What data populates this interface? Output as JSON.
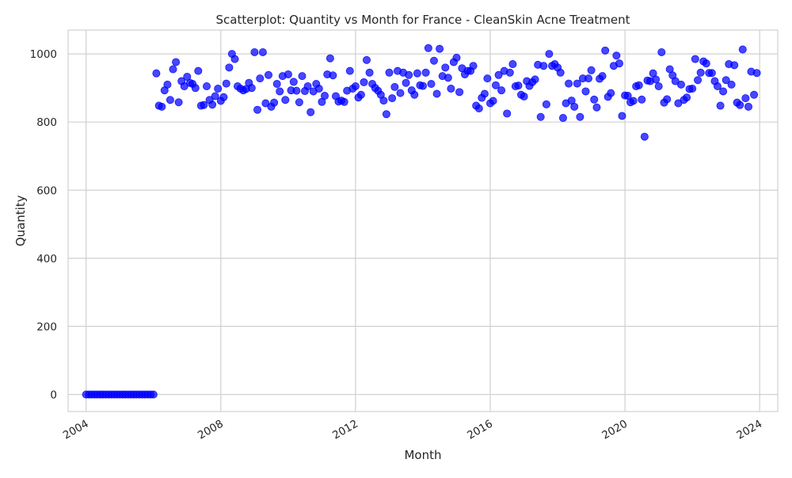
{
  "chart_data": {
    "type": "scatter",
    "title": "Scatterplot: Quantity vs Month for France - CleanSkin Acne Treatment",
    "xlabel": "Month",
    "ylabel": "Quantity",
    "xlim": [
      "2003-06-20",
      "2024-07-15"
    ],
    "ylim": [
      -50,
      1070
    ],
    "x_ticks": [
      "2004",
      "2008",
      "2012",
      "2016",
      "2020",
      "2024"
    ],
    "y_ticks": [
      "0",
      "200",
      "400",
      "600",
      "800",
      "1000"
    ],
    "grid": true,
    "point_color": "#0000ff",
    "series": [
      {
        "x": [
          "2004-01",
          "2004-02",
          "2004-03",
          "2004-04",
          "2004-05",
          "2004-06",
          "2004-07",
          "2004-08",
          "2004-09",
          "2004-10",
          "2004-11",
          "2004-12",
          "2005-01",
          "2005-02",
          "2005-03",
          "2005-04",
          "2005-05",
          "2005-06",
          "2005-07",
          "2005-08",
          "2005-09",
          "2005-10",
          "2005-11",
          "2005-12",
          "2006-01",
          "2006-02",
          "2006-03",
          "2006-04",
          "2006-05",
          "2006-06",
          "2006-07",
          "2006-08",
          "2006-09",
          "2006-10",
          "2006-11",
          "2006-12",
          "2007-01",
          "2007-02",
          "2007-03",
          "2007-04",
          "2007-05",
          "2007-06",
          "2007-07",
          "2007-08",
          "2007-09",
          "2007-10",
          "2007-11",
          "2007-12",
          "2008-01",
          "2008-02",
          "2008-03",
          "2008-04",
          "2008-05",
          "2008-06",
          "2008-07",
          "2008-08",
          "2008-09",
          "2008-10",
          "2008-11",
          "2008-12",
          "2009-01",
          "2009-02",
          "2009-03",
          "2009-04",
          "2009-05",
          "2009-06",
          "2009-07",
          "2009-08",
          "2009-09",
          "2009-10",
          "2009-11",
          "2009-12",
          "2010-01",
          "2010-02",
          "2010-03",
          "2010-04",
          "2010-05",
          "2010-06",
          "2010-07",
          "2010-08",
          "2010-09",
          "2010-10",
          "2010-11",
          "2010-12",
          "2011-01",
          "2011-02",
          "2011-03",
          "2011-04",
          "2011-05",
          "2011-06",
          "2011-07",
          "2011-08",
          "2011-09",
          "2011-10",
          "2011-11",
          "2011-12",
          "2012-01",
          "2012-02",
          "2012-03",
          "2012-04",
          "2012-05",
          "2012-06",
          "2012-07",
          "2012-08",
          "2012-09",
          "2012-10",
          "2012-11",
          "2012-12",
          "2013-01",
          "2013-02",
          "2013-03",
          "2013-04",
          "2013-05",
          "2013-06",
          "2013-07",
          "2013-08",
          "2013-09",
          "2013-10",
          "2013-11",
          "2013-12",
          "2014-01",
          "2014-02",
          "2014-03",
          "2014-04",
          "2014-05",
          "2014-06",
          "2014-07",
          "2014-08",
          "2014-09",
          "2014-10",
          "2014-11",
          "2014-12",
          "2015-01",
          "2015-02",
          "2015-03",
          "2015-04",
          "2015-05",
          "2015-06",
          "2015-07",
          "2015-08",
          "2015-09",
          "2015-10",
          "2015-11",
          "2015-12",
          "2016-01",
          "2016-02",
          "2016-03",
          "2016-04",
          "2016-05",
          "2016-06",
          "2016-07",
          "2016-08",
          "2016-09",
          "2016-10",
          "2016-11",
          "2016-12",
          "2017-01",
          "2017-02",
          "2017-03",
          "2017-04",
          "2017-05",
          "2017-06",
          "2017-07",
          "2017-08",
          "2017-09",
          "2017-10",
          "2017-11",
          "2017-12",
          "2018-01",
          "2018-02",
          "2018-03",
          "2018-04",
          "2018-05",
          "2018-06",
          "2018-07",
          "2018-08",
          "2018-09",
          "2018-10",
          "2018-11",
          "2018-12",
          "2019-01",
          "2019-02",
          "2019-03",
          "2019-04",
          "2019-05",
          "2019-06",
          "2019-07",
          "2019-08",
          "2019-09",
          "2019-10",
          "2019-11",
          "2019-12",
          "2020-01",
          "2020-02",
          "2020-03",
          "2020-04",
          "2020-05",
          "2020-06",
          "2020-07",
          "2020-08",
          "2020-09",
          "2020-10",
          "2020-11",
          "2020-12",
          "2021-01",
          "2021-02",
          "2021-03",
          "2021-04",
          "2021-05",
          "2021-06",
          "2021-07",
          "2021-08",
          "2021-09",
          "2021-10",
          "2021-11",
          "2021-12",
          "2022-01",
          "2022-02",
          "2022-03",
          "2022-04",
          "2022-05",
          "2022-06",
          "2022-07",
          "2022-08",
          "2022-09",
          "2022-10",
          "2022-11",
          "2022-12",
          "2023-01",
          "2023-02",
          "2023-03",
          "2023-04",
          "2023-05",
          "2023-06",
          "2023-07",
          "2023-08",
          "2023-09",
          "2023-10",
          "2023-11",
          "2023-12"
        ],
        "y": [
          0,
          0,
          0,
          0,
          0,
          0,
          0,
          0,
          0,
          0,
          0,
          0,
          0,
          0,
          0,
          0,
          0,
          0,
          0,
          0,
          0,
          0,
          0,
          0,
          0,
          943,
          848,
          845,
          893,
          910,
          865,
          955,
          976,
          858,
          920,
          905,
          933,
          915,
          912,
          900,
          950,
          848,
          850,
          905,
          865,
          851,
          876,
          898,
          862,
          873,
          913,
          960,
          1000,
          985,
          905,
          898,
          893,
          897,
          915,
          900,
          1005,
          836,
          928,
          1005,
          855,
          938,
          845,
          857,
          912,
          890,
          935,
          865,
          940,
          893,
          918,
          892,
          858,
          935,
          891,
          905,
          829,
          890,
          912,
          898,
          859,
          877,
          940,
          987,
          937,
          876,
          860,
          863,
          859,
          892,
          950,
          898,
          905,
          872,
          880,
          917,
          982,
          945,
          912,
          900,
          892,
          880,
          863,
          823,
          945,
          870,
          903,
          950,
          885,
          945,
          915,
          938,
          893,
          880,
          943,
          908,
          906,
          945,
          1017,
          912,
          980,
          883,
          1015,
          935,
          960,
          930,
          898,
          976,
          989,
          888,
          958,
          940,
          950,
          950,
          965,
          848,
          840,
          871,
          883,
          928,
          855,
          862,
          908,
          938,
          893,
          950,
          825,
          945,
          970,
          905,
          907,
          880,
          875,
          920,
          906,
          917,
          925,
          968,
          815,
          965,
          852,
          1000,
          965,
          970,
          960,
          945,
          812,
          855,
          913,
          863,
          845,
          913,
          815,
          928,
          890,
          928,
          952,
          866,
          843,
          927,
          935,
          1010,
          874,
          885,
          965,
          995,
          972,
          818,
          878,
          877,
          858,
          862,
          905,
          908,
          866,
          757,
          922,
          920,
          943,
          925,
          905,
          1005,
          857,
          867,
          955,
          937,
          920,
          855,
          910,
          865,
          872,
          897,
          898,
          985,
          923,
          945,
          978,
          972,
          944,
          944,
          920,
          905,
          848,
          890,
          923,
          970,
          910,
          967,
          857,
          850,
          1013,
          870,
          845,
          948,
          880,
          944
        ]
      }
    ]
  }
}
